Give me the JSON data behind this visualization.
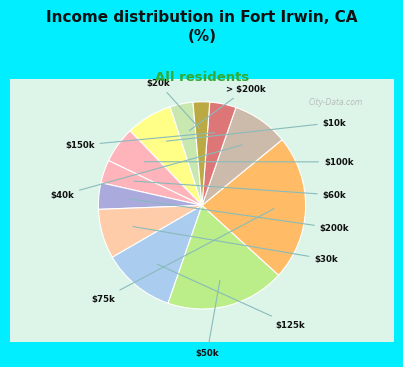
{
  "title": "Income distribution in Fort Irwin, CA\n(%)",
  "subtitle": "All residents",
  "title_color": "#111111",
  "subtitle_color": "#33aa33",
  "background_outer": "#00eeff",
  "background_inner_top": "#e0f8f0",
  "background_inner_bottom": "#c8f0d8",
  "labels": [
    "> $200k",
    "$10k",
    "$100k",
    "$60k",
    "$200k",
    "$30k",
    "$125k",
    "$50k",
    "$75k",
    "$40k",
    "$150k",
    "$20k"
  ],
  "values": [
    3.5,
    7.0,
    5.5,
    3.5,
    4.0,
    7.5,
    11.0,
    18.0,
    22.0,
    8.5,
    4.0,
    2.5
  ],
  "colors": [
    "#c8e8b0",
    "#ffff88",
    "#ffb3ba",
    "#ffb3ba",
    "#aaaadd",
    "#ffccaa",
    "#aaccee",
    "#bbee88",
    "#ffbb66",
    "#ccbbaa",
    "#dd7777",
    "#bbaa44"
  ],
  "wedge_edge_color": "#ffffff",
  "watermark": "City-Data.com"
}
